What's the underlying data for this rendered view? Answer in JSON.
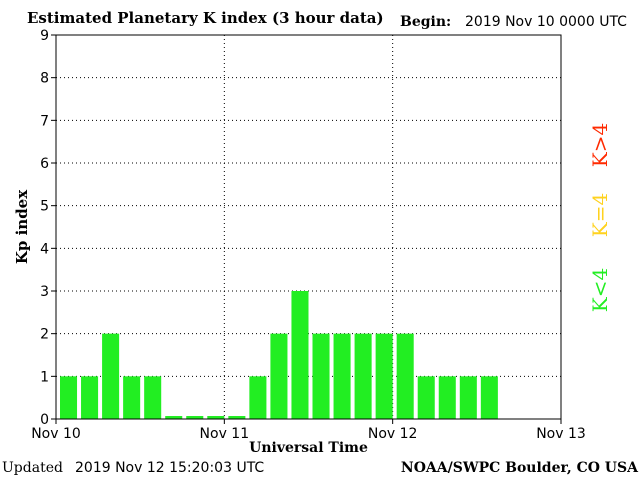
{
  "header": {
    "title": "Estimated Planetary K index (3 hour data)",
    "begin_label": "Begin:",
    "begin_value": "2019 Nov 10 0000 UTC"
  },
  "footer": {
    "updated_label": "Updated",
    "updated_value": "2019 Nov 12 15:20:03 UTC",
    "source": "NOAA/SWPC Boulder, CO USA"
  },
  "legend": [
    {
      "label": "K>4",
      "color": "#ff2a00"
    },
    {
      "label": "K=4",
      "color": "#ffd21e"
    },
    {
      "label": "K<4",
      "color": "#22ee22"
    }
  ],
  "chart_data": {
    "type": "bar",
    "title": "Estimated Planetary K index (3 hour data)",
    "xlabel": "Universal Time",
    "ylabel": "Kp index",
    "ylim": [
      0,
      9
    ],
    "yticks": [
      0,
      1,
      2,
      3,
      4,
      5,
      6,
      7,
      8,
      9
    ],
    "xticks": [
      "Nov 10",
      "Nov 11",
      "Nov 12",
      "Nov 13"
    ],
    "bins_per_day": 8,
    "total_bins": 24,
    "grid": true,
    "series": [
      {
        "values": [
          1,
          1,
          2,
          1,
          1,
          0.07,
          0.07,
          0.07,
          0.07,
          1,
          2,
          3,
          2,
          2,
          2,
          2,
          2,
          1,
          1,
          1,
          1
        ],
        "color": "#22ee22"
      }
    ]
  }
}
